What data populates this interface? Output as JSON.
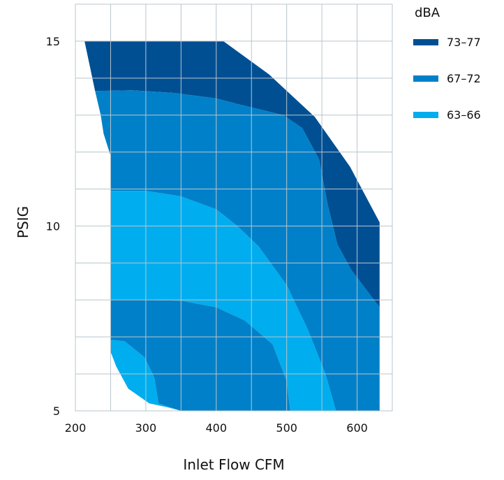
{
  "chart_data": {
    "type": "area",
    "xlabel": "Inlet Flow CFM",
    "ylabel": "PSIG",
    "xlim": [
      200,
      650
    ],
    "ylim": [
      5,
      16
    ],
    "x_ticks": [
      "200",
      "300",
      "400",
      "500",
      "600"
    ],
    "y_ticks": [
      "5",
      "10",
      "15"
    ],
    "grid": true,
    "legend": {
      "title": "dBA",
      "placement": "top-right",
      "entries": [
        {
          "label": "73–77",
          "color": "#004f93"
        },
        {
          "label": "67–72",
          "color": "#0080c8"
        },
        {
          "label": "63–66",
          "color": "#00adee"
        }
      ]
    },
    "regions": [
      {
        "name": "73–77",
        "color": "#004f93",
        "points": [
          [
            213,
            15
          ],
          [
            410,
            15
          ],
          [
            475,
            14.1
          ],
          [
            540,
            12.95
          ],
          [
            590,
            11.6
          ],
          [
            632,
            10.1
          ],
          [
            632,
            7.8
          ],
          [
            612,
            8.3
          ],
          [
            592,
            8.8
          ],
          [
            572,
            9.5
          ],
          [
            558,
            10.6
          ],
          [
            546,
            11.8
          ],
          [
            522,
            12.65
          ],
          [
            495,
            13.0
          ],
          [
            430,
            13.3
          ],
          [
            400,
            13.45
          ],
          [
            340,
            13.6
          ],
          [
            280,
            13.67
          ],
          [
            228,
            13.65
          ]
        ]
      },
      {
        "name": "67–72",
        "color": "#0080c8",
        "points": [
          [
            228,
            13.65
          ],
          [
            280,
            13.67
          ],
          [
            340,
            13.6
          ],
          [
            400,
            13.45
          ],
          [
            430,
            13.3
          ],
          [
            495,
            13.0
          ],
          [
            522,
            12.65
          ],
          [
            546,
            11.8
          ],
          [
            558,
            10.6
          ],
          [
            572,
            9.5
          ],
          [
            592,
            8.8
          ],
          [
            612,
            8.3
          ],
          [
            632,
            7.8
          ],
          [
            632,
            5
          ],
          [
            570,
            5
          ],
          [
            555,
            6.0
          ],
          [
            530,
            7.2
          ],
          [
            500,
            8.4
          ],
          [
            460,
            9.45
          ],
          [
            430,
            10.0
          ],
          [
            400,
            10.45
          ],
          [
            350,
            10.8
          ],
          [
            300,
            10.95
          ],
          [
            250,
            10.95
          ],
          [
            250,
            11.9
          ],
          [
            240,
            12.5
          ],
          [
            236,
            13.0
          ]
        ]
      },
      {
        "name": "63–66",
        "color": "#00adee",
        "points": [
          [
            250,
            10.95
          ],
          [
            300,
            10.95
          ],
          [
            350,
            10.8
          ],
          [
            400,
            10.45
          ],
          [
            430,
            10.0
          ],
          [
            460,
            9.45
          ],
          [
            500,
            8.4
          ],
          [
            530,
            7.2
          ],
          [
            555,
            6.0
          ],
          [
            570,
            5
          ],
          [
            505,
            5
          ],
          [
            500,
            5.8
          ],
          [
            480,
            6.8
          ],
          [
            440,
            7.45
          ],
          [
            400,
            7.8
          ],
          [
            350,
            7.98
          ],
          [
            300,
            8.0
          ],
          [
            250,
            8.0
          ]
        ]
      },
      {
        "name": "67–72",
        "color": "#0080c8",
        "points": [
          [
            250,
            8.0
          ],
          [
            300,
            8.0
          ],
          [
            350,
            7.98
          ],
          [
            400,
            7.8
          ],
          [
            440,
            7.45
          ],
          [
            480,
            6.8
          ],
          [
            500,
            5.8
          ],
          [
            505,
            5
          ],
          [
            350,
            5
          ],
          [
            318,
            5.2
          ],
          [
            312,
            5.9
          ],
          [
            298,
            6.45
          ],
          [
            270,
            6.88
          ],
          [
            250,
            6.92
          ]
        ]
      },
      {
        "name": "63–66",
        "color": "#00adee",
        "points": [
          [
            250,
            6.92
          ],
          [
            270,
            6.88
          ],
          [
            298,
            6.45
          ],
          [
            312,
            5.9
          ],
          [
            318,
            5.2
          ],
          [
            350,
            5
          ],
          [
            330,
            5.1
          ],
          [
            305,
            5.2
          ],
          [
            275,
            5.6
          ],
          [
            258,
            6.2
          ],
          [
            250,
            6.6
          ]
        ]
      }
    ]
  }
}
